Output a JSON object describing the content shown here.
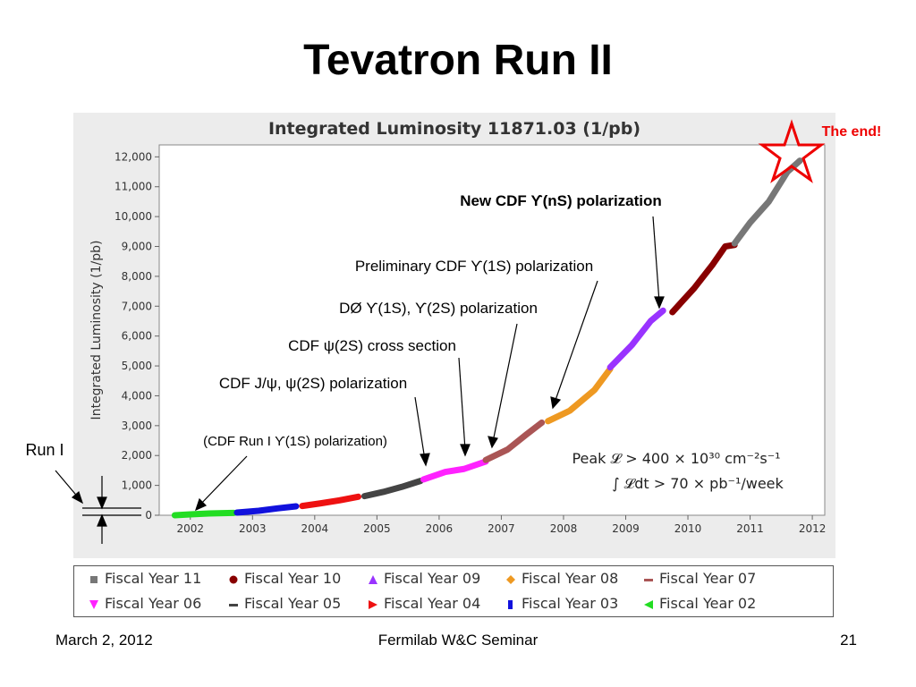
{
  "slide": {
    "title": "Tevatron Run II",
    "footer_left": "March 2, 2012",
    "footer_center": "Fermilab W&C Seminar",
    "footer_right": "21"
  },
  "chart_data": {
    "type": "scatter",
    "title": "Integrated Luminosity 11871.03 (1/pb)",
    "ylabel": "Integrated Luminosity (1/pb)",
    "xlabel": "",
    "xlim": [
      2001.5,
      2012.2
    ],
    "ylim": [
      0,
      12400
    ],
    "x_ticks": [
      "2002",
      "2003",
      "2004",
      "2005",
      "2006",
      "2007",
      "2008",
      "2009",
      "2010",
      "2011",
      "2012"
    ],
    "y_ticks": [
      "0",
      "1,000",
      "2,000",
      "3,000",
      "4,000",
      "5,000",
      "6,000",
      "7,000",
      "8,000",
      "9,000",
      "10,000",
      "11,000",
      "12,000"
    ],
    "series": [
      {
        "name": "Fiscal Year 02",
        "color": "#22dd22",
        "marker": "triangle-left",
        "points": [
          [
            2001.75,
            0
          ],
          [
            2002.0,
            30
          ],
          [
            2002.3,
            60
          ],
          [
            2002.7,
            80
          ]
        ]
      },
      {
        "name": "Fiscal Year 03",
        "color": "#1111dd",
        "marker": "square-small",
        "points": [
          [
            2002.75,
            90
          ],
          [
            2003.1,
            150
          ],
          [
            2003.4,
            230
          ],
          [
            2003.7,
            300
          ]
        ]
      },
      {
        "name": "Fiscal Year 04",
        "color": "#ee1111",
        "marker": "triangle-right",
        "points": [
          [
            2003.8,
            310
          ],
          [
            2004.1,
            400
          ],
          [
            2004.4,
            500
          ],
          [
            2004.7,
            620
          ]
        ]
      },
      {
        "name": "Fiscal Year 05",
        "color": "#444444",
        "marker": "dash",
        "points": [
          [
            2004.8,
            640
          ],
          [
            2005.1,
            780
          ],
          [
            2005.4,
            950
          ],
          [
            2005.7,
            1150
          ]
        ]
      },
      {
        "name": "Fiscal Year 06",
        "color": "#ff22ff",
        "marker": "triangle-down",
        "points": [
          [
            2005.75,
            1200
          ],
          [
            2006.1,
            1450
          ],
          [
            2006.4,
            1550
          ],
          [
            2006.75,
            1800
          ]
        ]
      },
      {
        "name": "Fiscal Year 07",
        "color": "#aa5555",
        "marker": "dash",
        "points": [
          [
            2006.75,
            1850
          ],
          [
            2007.1,
            2200
          ],
          [
            2007.4,
            2700
          ],
          [
            2007.65,
            3100
          ]
        ]
      },
      {
        "name": "Fiscal Year 08",
        "color": "#ee9922",
        "marker": "diamond",
        "points": [
          [
            2007.75,
            3150
          ],
          [
            2008.1,
            3500
          ],
          [
            2008.5,
            4200
          ],
          [
            2008.75,
            4900
          ]
        ]
      },
      {
        "name": "Fiscal Year 09",
        "color": "#9933ff",
        "marker": "triangle-up",
        "points": [
          [
            2008.75,
            4950
          ],
          [
            2009.1,
            5700
          ],
          [
            2009.4,
            6500
          ],
          [
            2009.6,
            6850
          ]
        ]
      },
      {
        "name": "Fiscal Year 10",
        "color": "#880000",
        "marker": "circle",
        "points": [
          [
            2009.75,
            6800
          ],
          [
            2010.1,
            7600
          ],
          [
            2010.4,
            8400
          ],
          [
            2010.6,
            9000
          ],
          [
            2010.75,
            9050
          ]
        ]
      },
      {
        "name": "Fiscal Year 11",
        "color": "#777777",
        "marker": "square",
        "points": [
          [
            2010.75,
            9100
          ],
          [
            2011.0,
            9800
          ],
          [
            2011.3,
            10500
          ],
          [
            2011.6,
            11500
          ],
          [
            2011.8,
            11871
          ]
        ]
      }
    ],
    "annotations": [
      {
        "text": "The end!",
        "color": "#ee0000"
      },
      {
        "text": "New CDF ϒ(nS) polarization"
      },
      {
        "text": "Preliminary CDF ϒ(1S) polarization"
      },
      {
        "text": "DØ ϒ(1S),  ϒ(2S) polarization"
      },
      {
        "text": "CDF ψ(2S) cross section"
      },
      {
        "text": "CDF J/ψ, ψ(2S) polarization"
      },
      {
        "text": "(CDF Run I ϒ(1S) polarization)"
      },
      {
        "text": "Run I"
      }
    ],
    "peak_text_line1": "Peak 𝓛 > 400 × 10³⁰ cm⁻²s⁻¹",
    "peak_text_line2": "∫ 𝓛dt > 70 × pb⁻¹/week",
    "legend_placement": "bottom",
    "grid": false
  }
}
